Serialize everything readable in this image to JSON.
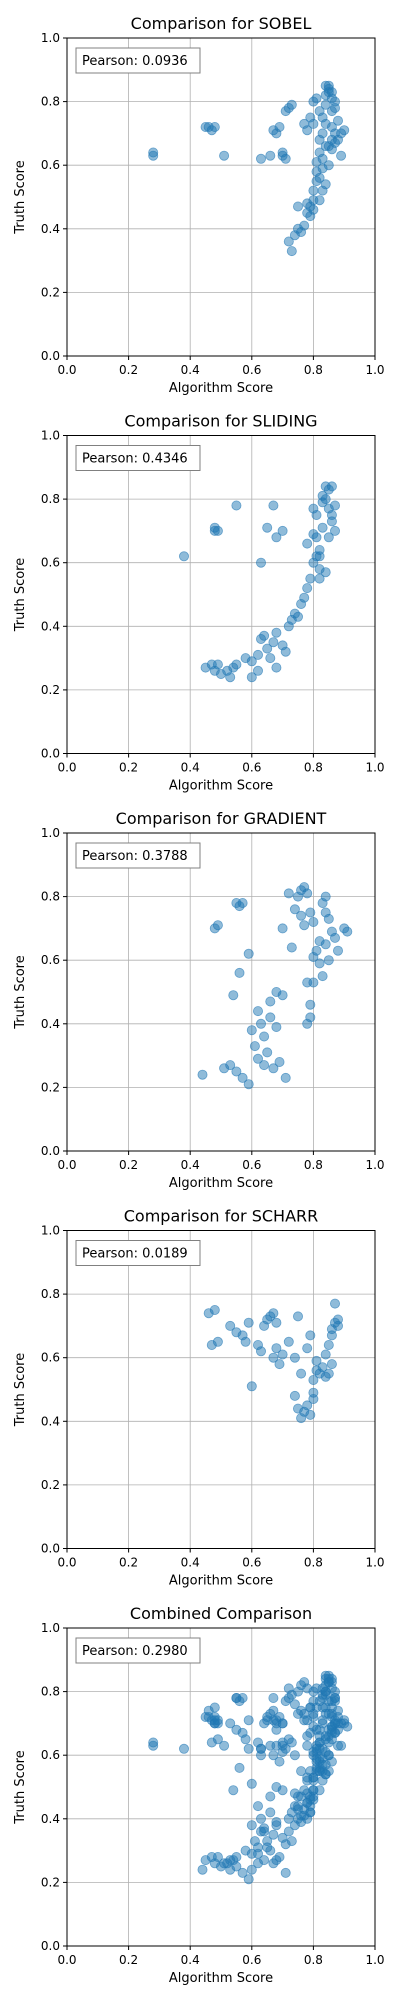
{
  "chart_data": [
    {
      "type": "scatter",
      "title": "Comparison for SOBEL",
      "xlabel": "Algorithm Score",
      "ylabel": "Truth Score",
      "xlim": [
        0,
        1
      ],
      "ylim": [
        0,
        1
      ],
      "xticks": [
        "0.0",
        "0.2",
        "0.4",
        "0.6",
        "0.8",
        "1.0"
      ],
      "yticks": [
        "0.0",
        "0.2",
        "0.4",
        "0.6",
        "0.8",
        "1.0"
      ],
      "grid": true,
      "annotation": "Pearson: 0.0936",
      "color": "#1f77b4",
      "points": [
        [
          0.28,
          0.63
        ],
        [
          0.28,
          0.64
        ],
        [
          0.45,
          0.72
        ],
        [
          0.46,
          0.72
        ],
        [
          0.47,
          0.71
        ],
        [
          0.48,
          0.72
        ],
        [
          0.51,
          0.63
        ],
        [
          0.63,
          0.62
        ],
        [
          0.66,
          0.63
        ],
        [
          0.67,
          0.71
        ],
        [
          0.68,
          0.7
        ],
        [
          0.69,
          0.72
        ],
        [
          0.7,
          0.63
        ],
        [
          0.7,
          0.64
        ],
        [
          0.71,
          0.62
        ],
        [
          0.71,
          0.77
        ],
        [
          0.72,
          0.78
        ],
        [
          0.73,
          0.79
        ],
        [
          0.72,
          0.36
        ],
        [
          0.73,
          0.33
        ],
        [
          0.74,
          0.38
        ],
        [
          0.75,
          0.4
        ],
        [
          0.75,
          0.47
        ],
        [
          0.76,
          0.39
        ],
        [
          0.77,
          0.41
        ],
        [
          0.78,
          0.45
        ],
        [
          0.78,
          0.48
        ],
        [
          0.79,
          0.44
        ],
        [
          0.79,
          0.47
        ],
        [
          0.8,
          0.49
        ],
        [
          0.8,
          0.46
        ],
        [
          0.8,
          0.52
        ],
        [
          0.81,
          0.55
        ],
        [
          0.81,
          0.58
        ],
        [
          0.81,
          0.61
        ],
        [
          0.82,
          0.64
        ],
        [
          0.82,
          0.56
        ],
        [
          0.82,
          0.68
        ],
        [
          0.83,
          0.7
        ],
        [
          0.83,
          0.75
        ],
        [
          0.84,
          0.79
        ],
        [
          0.84,
          0.82
        ],
        [
          0.85,
          0.84
        ],
        [
          0.85,
          0.85
        ],
        [
          0.86,
          0.83
        ],
        [
          0.86,
          0.81
        ],
        [
          0.87,
          0.8
        ],
        [
          0.87,
          0.78
        ],
        [
          0.84,
          0.73
        ],
        [
          0.85,
          0.66
        ],
        [
          0.86,
          0.72
        ],
        [
          0.87,
          0.7
        ],
        [
          0.88,
          0.74
        ],
        [
          0.89,
          0.7
        ],
        [
          0.9,
          0.71
        ],
        [
          0.89,
          0.63
        ],
        [
          0.83,
          0.62
        ],
        [
          0.84,
          0.66
        ],
        [
          0.86,
          0.68
        ],
        [
          0.8,
          0.8
        ],
        [
          0.81,
          0.81
        ],
        [
          0.82,
          0.77
        ],
        [
          0.79,
          0.75
        ],
        [
          0.78,
          0.71
        ],
        [
          0.77,
          0.73
        ],
        [
          0.8,
          0.73
        ],
        [
          0.83,
          0.59
        ],
        [
          0.82,
          0.49
        ],
        [
          0.83,
          0.52
        ],
        [
          0.84,
          0.54
        ],
        [
          0.85,
          0.6
        ],
        [
          0.86,
          0.65
        ],
        [
          0.87,
          0.67
        ],
        [
          0.88,
          0.68
        ],
        [
          0.84,
          0.85
        ],
        [
          0.85,
          0.83
        ],
        [
          0.86,
          0.77
        ]
      ]
    },
    {
      "type": "scatter",
      "title": "Comparison for SLIDING",
      "xlabel": "Algorithm Score",
      "ylabel": "Truth Score",
      "xlim": [
        0,
        1
      ],
      "ylim": [
        0,
        1
      ],
      "xticks": [
        "0.0",
        "0.2",
        "0.4",
        "0.6",
        "0.8",
        "1.0"
      ],
      "yticks": [
        "0.0",
        "0.2",
        "0.4",
        "0.6",
        "0.8",
        "1.0"
      ],
      "grid": true,
      "annotation": "Pearson: 0.4346",
      "color": "#1f77b4",
      "points": [
        [
          0.38,
          0.62
        ],
        [
          0.45,
          0.27
        ],
        [
          0.47,
          0.28
        ],
        [
          0.48,
          0.26
        ],
        [
          0.49,
          0.28
        ],
        [
          0.5,
          0.25
        ],
        [
          0.52,
          0.26
        ],
        [
          0.53,
          0.24
        ],
        [
          0.54,
          0.27
        ],
        [
          0.55,
          0.28
        ],
        [
          0.48,
          0.7
        ],
        [
          0.48,
          0.71
        ],
        [
          0.49,
          0.7
        ],
        [
          0.55,
          0.78
        ],
        [
          0.63,
          0.6
        ],
        [
          0.65,
          0.71
        ],
        [
          0.67,
          0.78
        ],
        [
          0.68,
          0.68
        ],
        [
          0.7,
          0.7
        ],
        [
          0.58,
          0.3
        ],
        [
          0.6,
          0.29
        ],
        [
          0.62,
          0.31
        ],
        [
          0.63,
          0.36
        ],
        [
          0.64,
          0.37
        ],
        [
          0.65,
          0.33
        ],
        [
          0.66,
          0.3
        ],
        [
          0.67,
          0.35
        ],
        [
          0.68,
          0.38
        ],
        [
          0.7,
          0.34
        ],
        [
          0.71,
          0.32
        ],
        [
          0.72,
          0.4
        ],
        [
          0.73,
          0.42
        ],
        [
          0.74,
          0.44
        ],
        [
          0.75,
          0.43
        ],
        [
          0.76,
          0.47
        ],
        [
          0.77,
          0.49
        ],
        [
          0.78,
          0.52
        ],
        [
          0.79,
          0.55
        ],
        [
          0.78,
          0.66
        ],
        [
          0.8,
          0.6
        ],
        [
          0.8,
          0.69
        ],
        [
          0.81,
          0.75
        ],
        [
          0.81,
          0.62
        ],
        [
          0.82,
          0.58
        ],
        [
          0.82,
          0.64
        ],
        [
          0.83,
          0.71
        ],
        [
          0.83,
          0.79
        ],
        [
          0.84,
          0.84
        ],
        [
          0.85,
          0.83
        ],
        [
          0.84,
          0.8
        ],
        [
          0.85,
          0.77
        ],
        [
          0.86,
          0.75
        ],
        [
          0.87,
          0.78
        ],
        [
          0.86,
          0.73
        ],
        [
          0.87,
          0.7
        ],
        [
          0.85,
          0.68
        ],
        [
          0.82,
          0.55
        ],
        [
          0.8,
          0.77
        ],
        [
          0.84,
          0.57
        ],
        [
          0.83,
          0.81
        ],
        [
          0.86,
          0.84
        ],
        [
          0.6,
          0.24
        ],
        [
          0.68,
          0.27
        ],
        [
          0.62,
          0.26
        ],
        [
          0.82,
          0.62
        ],
        [
          0.81,
          0.68
        ]
      ]
    },
    {
      "type": "scatter",
      "title": "Comparison for GRADIENT",
      "xlabel": "Algorithm Score",
      "ylabel": "Truth Score",
      "xlim": [
        0,
        1
      ],
      "ylim": [
        0,
        1
      ],
      "xticks": [
        "0.0",
        "0.2",
        "0.4",
        "0.6",
        "0.8",
        "1.0"
      ],
      "yticks": [
        "0.0",
        "0.2",
        "0.4",
        "0.6",
        "0.8",
        "1.0"
      ],
      "grid": true,
      "annotation": "Pearson: 0.3788",
      "color": "#1f77b4",
      "points": [
        [
          0.44,
          0.24
        ],
        [
          0.48,
          0.7
        ],
        [
          0.49,
          0.71
        ],
        [
          0.51,
          0.26
        ],
        [
          0.53,
          0.27
        ],
        [
          0.54,
          0.49
        ],
        [
          0.55,
          0.25
        ],
        [
          0.55,
          0.78
        ],
        [
          0.56,
          0.77
        ],
        [
          0.57,
          0.78
        ],
        [
          0.56,
          0.56
        ],
        [
          0.57,
          0.23
        ],
        [
          0.59,
          0.21
        ],
        [
          0.59,
          0.62
        ],
        [
          0.6,
          0.38
        ],
        [
          0.61,
          0.33
        ],
        [
          0.62,
          0.29
        ],
        [
          0.63,
          0.4
        ],
        [
          0.64,
          0.36
        ],
        [
          0.64,
          0.27
        ],
        [
          0.65,
          0.31
        ],
        [
          0.66,
          0.42
        ],
        [
          0.66,
          0.47
        ],
        [
          0.67,
          0.26
        ],
        [
          0.68,
          0.5
        ],
        [
          0.68,
          0.39
        ],
        [
          0.69,
          0.28
        ],
        [
          0.7,
          0.49
        ],
        [
          0.7,
          0.7
        ],
        [
          0.71,
          0.23
        ],
        [
          0.72,
          0.81
        ],
        [
          0.73,
          0.64
        ],
        [
          0.74,
          0.76
        ],
        [
          0.75,
          0.8
        ],
        [
          0.76,
          0.82
        ],
        [
          0.77,
          0.83
        ],
        [
          0.78,
          0.81
        ],
        [
          0.78,
          0.53
        ],
        [
          0.79,
          0.42
        ],
        [
          0.78,
          0.4
        ],
        [
          0.79,
          0.46
        ],
        [
          0.8,
          0.61
        ],
        [
          0.8,
          0.72
        ],
        [
          0.81,
          0.63
        ],
        [
          0.82,
          0.66
        ],
        [
          0.83,
          0.78
        ],
        [
          0.84,
          0.8
        ],
        [
          0.84,
          0.75
        ],
        [
          0.85,
          0.73
        ],
        [
          0.86,
          0.69
        ],
        [
          0.87,
          0.67
        ],
        [
          0.88,
          0.63
        ],
        [
          0.9,
          0.7
        ],
        [
          0.91,
          0.69
        ],
        [
          0.83,
          0.55
        ],
        [
          0.82,
          0.59
        ],
        [
          0.79,
          0.75
        ],
        [
          0.77,
          0.71
        ],
        [
          0.76,
          0.74
        ],
        [
          0.84,
          0.65
        ],
        [
          0.85,
          0.6
        ],
        [
          0.8,
          0.53
        ],
        [
          0.62,
          0.44
        ]
      ]
    },
    {
      "type": "scatter",
      "title": "Comparison for SCHARR",
      "xlabel": "Algorithm Score",
      "ylabel": "Truth Score",
      "xlim": [
        0,
        1
      ],
      "ylim": [
        0,
        1
      ],
      "xticks": [
        "0.0",
        "0.2",
        "0.4",
        "0.6",
        "0.8",
        "1.0"
      ],
      "yticks": [
        "0.0",
        "0.2",
        "0.4",
        "0.6",
        "0.8",
        "1.0"
      ],
      "grid": true,
      "annotation": "Pearson: 0.0189",
      "color": "#1f77b4",
      "points": [
        [
          0.46,
          0.74
        ],
        [
          0.47,
          0.64
        ],
        [
          0.48,
          0.75
        ],
        [
          0.49,
          0.65
        ],
        [
          0.53,
          0.7
        ],
        [
          0.55,
          0.68
        ],
        [
          0.57,
          0.67
        ],
        [
          0.58,
          0.65
        ],
        [
          0.59,
          0.71
        ],
        [
          0.6,
          0.51
        ],
        [
          0.62,
          0.64
        ],
        [
          0.63,
          0.62
        ],
        [
          0.64,
          0.7
        ],
        [
          0.65,
          0.72
        ],
        [
          0.66,
          0.73
        ],
        [
          0.67,
          0.74
        ],
        [
          0.68,
          0.71
        ],
        [
          0.67,
          0.6
        ],
        [
          0.68,
          0.63
        ],
        [
          0.69,
          0.58
        ],
        [
          0.7,
          0.61
        ],
        [
          0.72,
          0.65
        ],
        [
          0.74,
          0.6
        ],
        [
          0.75,
          0.73
        ],
        [
          0.75,
          0.44
        ],
        [
          0.76,
          0.41
        ],
        [
          0.77,
          0.43
        ],
        [
          0.78,
          0.45
        ],
        [
          0.79,
          0.42
        ],
        [
          0.8,
          0.53
        ],
        [
          0.8,
          0.47
        ],
        [
          0.81,
          0.56
        ],
        [
          0.81,
          0.59
        ],
        [
          0.82,
          0.55
        ],
        [
          0.83,
          0.57
        ],
        [
          0.84,
          0.54
        ],
        [
          0.85,
          0.55
        ],
        [
          0.84,
          0.61
        ],
        [
          0.85,
          0.64
        ],
        [
          0.86,
          0.67
        ],
        [
          0.86,
          0.69
        ],
        [
          0.87,
          0.71
        ],
        [
          0.88,
          0.72
        ],
        [
          0.87,
          0.77
        ],
        [
          0.88,
          0.7
        ],
        [
          0.79,
          0.67
        ],
        [
          0.78,
          0.63
        ],
        [
          0.8,
          0.49
        ],
        [
          0.86,
          0.58
        ],
        [
          0.74,
          0.48
        ],
        [
          0.76,
          0.55
        ]
      ]
    },
    {
      "type": "scatter",
      "title": "Combined Comparison",
      "xlabel": "Algorithm Score",
      "ylabel": "Truth Score",
      "xlim": [
        0,
        1
      ],
      "ylim": [
        0,
        1
      ],
      "xticks": [
        "0.0",
        "0.2",
        "0.4",
        "0.6",
        "0.8",
        "1.0"
      ],
      "yticks": [
        "0.0",
        "0.2",
        "0.4",
        "0.6",
        "0.8",
        "1.0"
      ],
      "grid": true,
      "annotation": "Pearson: 0.2980",
      "color": "#1f77b4",
      "combined": true,
      "points": []
    }
  ]
}
